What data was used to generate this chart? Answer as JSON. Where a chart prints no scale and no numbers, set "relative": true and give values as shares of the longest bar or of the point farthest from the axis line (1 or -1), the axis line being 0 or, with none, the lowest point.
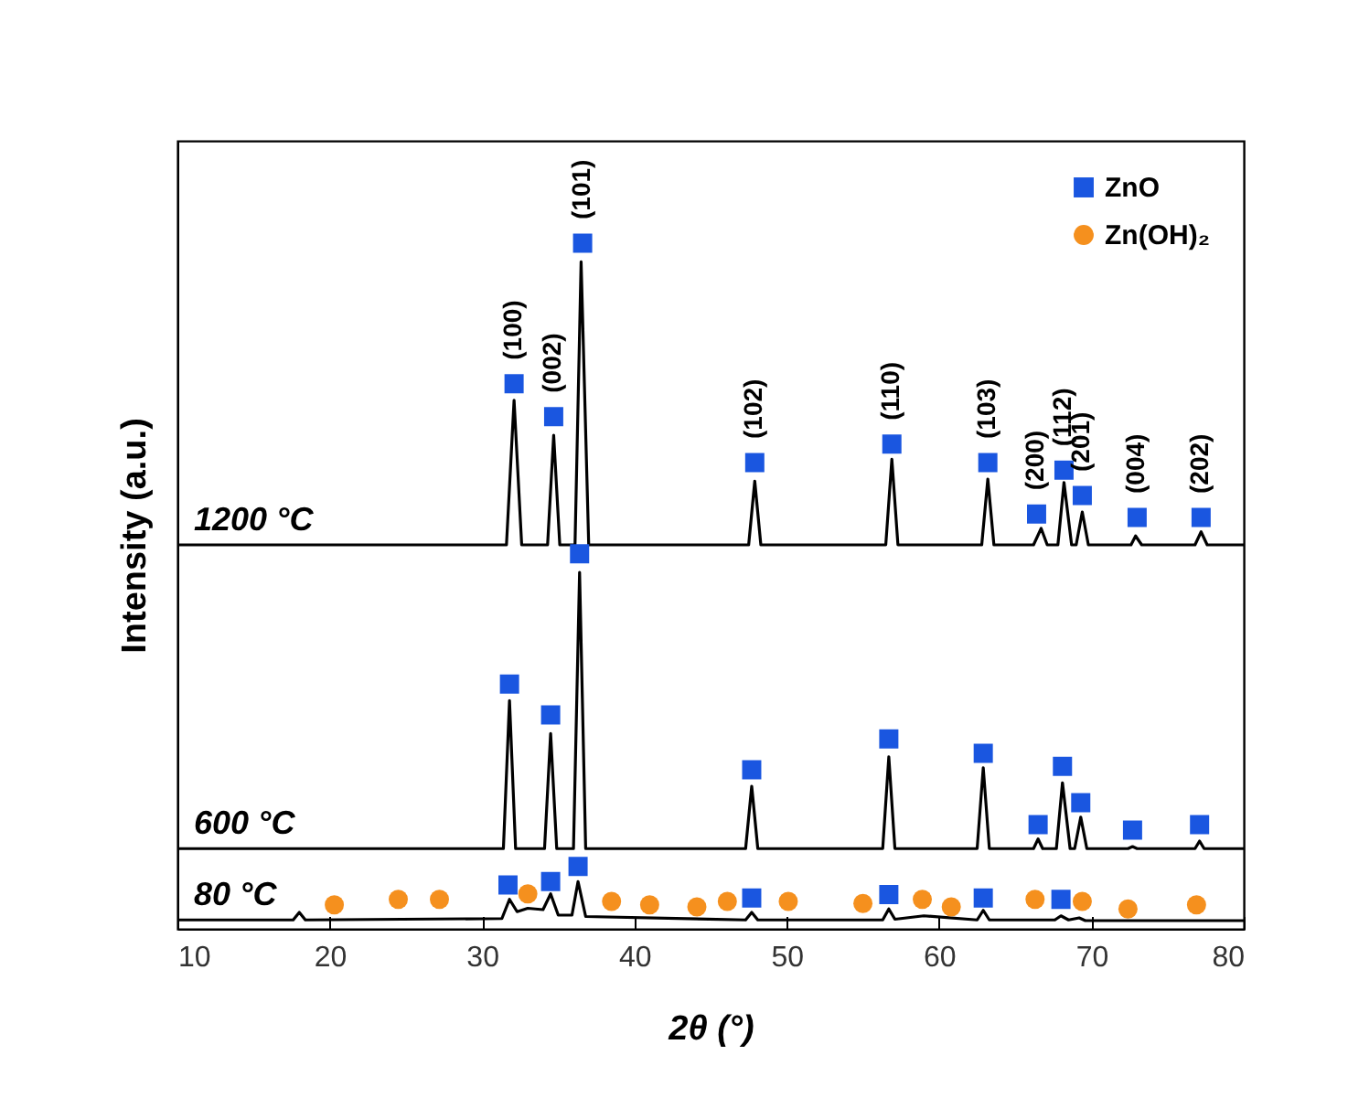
{
  "chart_data": {
    "type": "line",
    "relative": true,
    "xlabel": "2θ (°)",
    "ylabel": "Intensity (a.u.)",
    "xlim": [
      10,
      80
    ],
    "xticks": [
      10,
      20,
      30,
      40,
      50,
      60,
      70,
      80
    ],
    "legend": "top right",
    "series": [
      {
        "name": "1200 °C",
        "color": "#000000",
        "x": [
          10,
          31.6,
          32.1,
          32.6,
          34.3,
          34.7,
          35.1,
          36.1,
          36.5,
          37.0,
          47.5,
          47.9,
          48.3,
          56.5,
          56.9,
          57.3,
          62.8,
          63.2,
          63.6,
          66.2,
          66.7,
          67.1,
          67.8,
          68.2,
          68.7,
          69.0,
          69.4,
          69.8,
          72.6,
          72.9,
          73.3,
          76.8,
          77.2,
          77.6,
          80
        ],
        "values": [
          0.56,
          0.56,
          0.771,
          0.56,
          0.56,
          0.72,
          0.56,
          0.56,
          0.973,
          0.56,
          0.56,
          0.653,
          0.56,
          0.56,
          0.685,
          0.56,
          0.56,
          0.656,
          0.56,
          0.56,
          0.584,
          0.56,
          0.56,
          0.651,
          0.56,
          0.56,
          0.608,
          0.56,
          0.56,
          0.573,
          0.56,
          0.56,
          0.579,
          0.56,
          0.56
        ]
      },
      {
        "name": "600 °C",
        "color": "#000000",
        "x": [
          10,
          31.4,
          31.8,
          32.2,
          34.1,
          34.5,
          34.9,
          36.0,
          36.4,
          36.8,
          47.3,
          47.7,
          48.1,
          56.3,
          56.7,
          57.1,
          62.5,
          62.9,
          63.3,
          66.2,
          66.5,
          66.8,
          67.7,
          68.1,
          68.6,
          68.9,
          69.3,
          69.7,
          72.4,
          72.7,
          73.0,
          76.8,
          77.1,
          77.4,
          80
        ],
        "values": [
          0.117,
          0.117,
          0.333,
          0.117,
          0.117,
          0.285,
          0.117,
          0.117,
          0.52,
          0.117,
          0.117,
          0.208,
          0.117,
          0.117,
          0.251,
          0.117,
          0.117,
          0.235,
          0.117,
          0.117,
          0.131,
          0.117,
          0.117,
          0.213,
          0.117,
          0.117,
          0.163,
          0.117,
          0.117,
          0.12,
          0.117,
          0.117,
          0.128,
          0.117,
          0.117
        ]
      },
      {
        "name": "80 °C",
        "color": "#000000",
        "x": [
          10,
          17.6,
          18.0,
          18.4,
          31.3,
          31.8,
          32.3,
          33.0,
          34.0,
          34.5,
          35.0,
          35.9,
          36.3,
          36.8,
          47.3,
          47.7,
          48.1,
          56.3,
          56.7,
          57.1,
          59.0,
          62.5,
          62.9,
          63.3,
          67.6,
          68.0,
          68.5,
          69.2,
          69.6,
          80
        ],
        "values": [
          0.013,
          0.013,
          0.024,
          0.013,
          0.015,
          0.043,
          0.025,
          0.03,
          0.028,
          0.051,
          0.02,
          0.02,
          0.069,
          0.018,
          0.013,
          0.024,
          0.013,
          0.013,
          0.029,
          0.014,
          0.019,
          0.013,
          0.027,
          0.013,
          0.013,
          0.019,
          0.013,
          0.016,
          0.012,
          0.012
        ]
      },
      {
        "name": "ZnO",
        "type": "scatter",
        "color": "#1a56e0",
        "marker": "square",
        "x": [
          32.1,
          34.7,
          36.6,
          47.9,
          56.9,
          63.2,
          66.4,
          68.2,
          69.4,
          73.0,
          77.2,
          31.8,
          34.5,
          36.4,
          47.7,
          56.7,
          62.9,
          66.5,
          68.1,
          69.3,
          72.7,
          77.1,
          31.7,
          34.5,
          36.3,
          47.7,
          56.7,
          62.9,
          68.0
        ],
        "values": [
          0.795,
          0.747,
          1.0,
          0.68,
          0.707,
          0.68,
          0.605,
          0.669,
          0.632,
          0.6,
          0.6,
          0.357,
          0.312,
          0.547,
          0.232,
          0.277,
          0.256,
          0.152,
          0.237,
          0.184,
          0.144,
          0.152,
          0.064,
          0.069,
          0.091,
          0.045,
          0.05,
          0.045,
          0.043
        ]
      },
      {
        "name": "Zn(OH)₂",
        "type": "scatter",
        "color": "#f5901e",
        "marker": "circle",
        "x": [
          20.3,
          24.5,
          27.2,
          33.0,
          38.5,
          41.0,
          44.1,
          46.1,
          50.1,
          55.0,
          58.9,
          60.8,
          66.3,
          69.4,
          72.4,
          76.9
        ],
        "values": [
          0.035,
          0.043,
          0.043,
          0.051,
          0.04,
          0.035,
          0.032,
          0.04,
          0.04,
          0.037,
          0.043,
          0.032,
          0.043,
          0.04,
          0.029,
          0.035
        ]
      }
    ],
    "annotations": [
      {
        "text": "(100)",
        "x": 32.1,
        "y": 0.795
      },
      {
        "text": "(002)",
        "x": 34.7,
        "y": 0.747
      },
      {
        "text": "(101)",
        "x": 36.6,
        "y": 1.0
      },
      {
        "text": "(102)",
        "x": 47.9,
        "y": 0.68
      },
      {
        "text": "(110)",
        "x": 56.9,
        "y": 0.707
      },
      {
        "text": "(103)",
        "x": 63.2,
        "y": 0.68
      },
      {
        "text": "(200)",
        "x": 66.4,
        "y": 0.605
      },
      {
        "text": "(112)",
        "x": 68.2,
        "y": 0.669
      },
      {
        "text": "(201)",
        "x": 69.4,
        "y": 0.632
      },
      {
        "text": "(004)",
        "x": 73.0,
        "y": 0.6
      },
      {
        "text": "(202)",
        "x": 77.2,
        "y": 0.6
      }
    ]
  }
}
